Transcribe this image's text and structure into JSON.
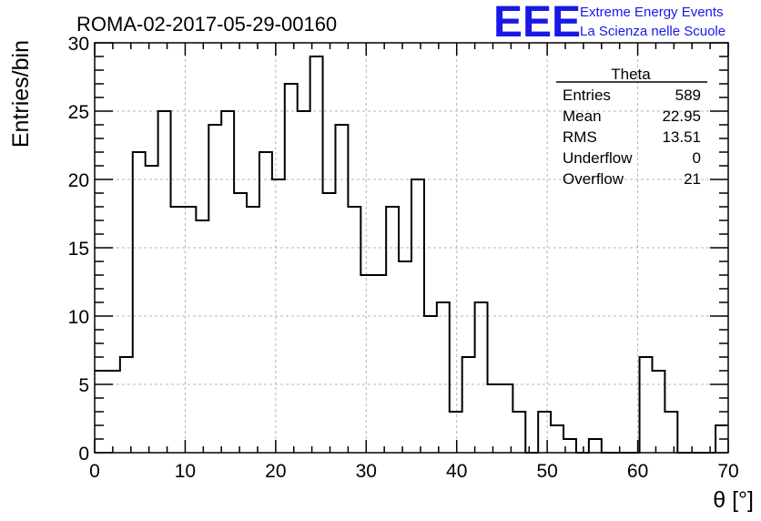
{
  "chart_data": {
    "type": "histogram",
    "title": "ROMA-02-2017-05-29-00160",
    "xlabel": "θ [°]",
    "ylabel": "Entries/bin",
    "xlim": [
      0,
      70
    ],
    "ylim": [
      0,
      30
    ],
    "xticks": [
      0,
      10,
      20,
      30,
      40,
      50,
      60,
      70
    ],
    "yticks": [
      0,
      5,
      10,
      15,
      20,
      25,
      30
    ],
    "grid": true,
    "bin_width": 1.4,
    "bin_edges_start": 0,
    "values": [
      6,
      6,
      7,
      22,
      21,
      25,
      18,
      18,
      17,
      24,
      25,
      19,
      18,
      22,
      20,
      27,
      25,
      29,
      19,
      24,
      18,
      13,
      13,
      18,
      14,
      20,
      10,
      11,
      3,
      7,
      11,
      5,
      5,
      3,
      0,
      3,
      2,
      1,
      0,
      1,
      0,
      0,
      0,
      7,
      6,
      3,
      0,
      0,
      0,
      2
    ]
  },
  "stats": {
    "name": "Theta",
    "rows": [
      {
        "label": "Entries",
        "value": "589"
      },
      {
        "label": "Mean",
        "value": "22.95"
      },
      {
        "label": "RMS",
        "value": "13.51"
      },
      {
        "label": "Underflow",
        "value": "0"
      },
      {
        "label": "Overflow",
        "value": "21"
      }
    ]
  },
  "logo": {
    "mark": "EEE",
    "line1": "Extreme Energy Events",
    "line2": "La Scienza nelle Scuole",
    "color": "#1919e6"
  }
}
